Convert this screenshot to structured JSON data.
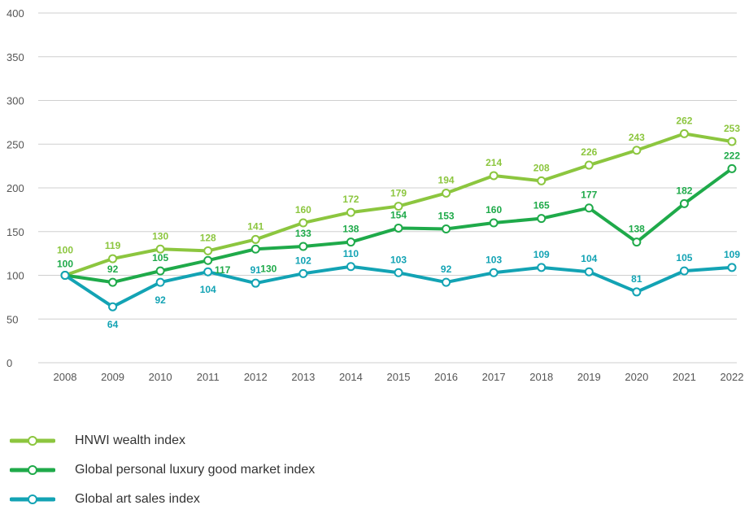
{
  "chart_data": {
    "type": "line",
    "x": [
      "2008",
      "2009",
      "2010",
      "2011",
      "2012",
      "2013",
      "2014",
      "2015",
      "2016",
      "2017",
      "2018",
      "2019",
      "2020",
      "2021",
      "2022"
    ],
    "ylim": [
      0,
      400
    ],
    "yticks": [
      "0",
      "50",
      "100",
      "150",
      "200",
      "250",
      "300",
      "350",
      "400"
    ],
    "grid": "horizontal",
    "legend_position": "bottom-left",
    "series": [
      {
        "name": "HNWI wealth index",
        "color": "#8cc63f",
        "values": [
          100,
          119,
          130,
          128,
          141,
          160,
          172,
          179,
          194,
          214,
          208,
          226,
          243,
          262,
          253
        ],
        "labels": [
          "100",
          "119",
          "130",
          "128",
          "141",
          "160",
          "172",
          "179",
          "194",
          "214",
          "208",
          "226",
          "243",
          "262",
          "253"
        ]
      },
      {
        "name": "Global personal luxury good market index",
        "color": "#1faa4a",
        "values": [
          100,
          92,
          105,
          117,
          130,
          133,
          138,
          154,
          153,
          160,
          165,
          177,
          138,
          182,
          222
        ],
        "labels": [
          "100",
          "92",
          "105",
          "117",
          "130",
          "133",
          "138",
          "154",
          "153",
          "160",
          "165",
          "177",
          "138",
          "182",
          "222"
        ]
      },
      {
        "name": "Global art sales index",
        "color": "#13a3b4",
        "values": [
          100,
          64,
          92,
          104,
          91,
          102,
          110,
          103,
          92,
          103,
          109,
          104,
          81,
          105,
          109
        ],
        "labels": [
          "",
          "64",
          "92",
          "104",
          "91",
          "102",
          "110",
          "103",
          "92",
          "103",
          "109",
          "104",
          "81",
          "105",
          "109"
        ]
      }
    ]
  }
}
